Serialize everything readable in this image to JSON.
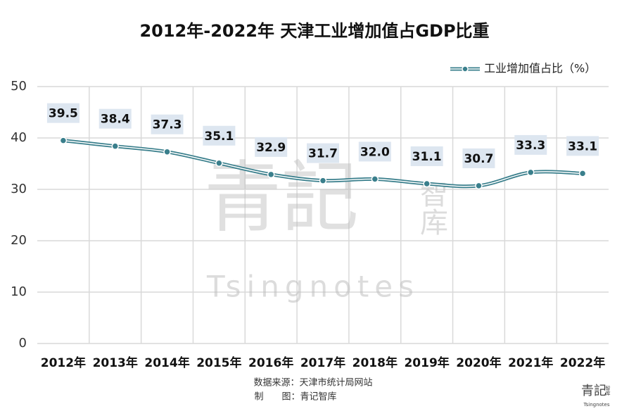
{
  "chart_data": {
    "type": "line",
    "title": "2012年-2022年 天津工业增加值占GDP比重",
    "categories": [
      "2012年",
      "2013年",
      "2014年",
      "2015年",
      "2016年",
      "2017年",
      "2018年",
      "2019年",
      "2020年",
      "2021年",
      "2022年"
    ],
    "series": [
      {
        "name": "工业增加值占比（%）",
        "color": "#3a7f8c",
        "values": [
          39.5,
          38.4,
          37.3,
          35.1,
          32.9,
          31.7,
          32.0,
          31.1,
          30.7,
          33.3,
          33.1
        ],
        "value_labels": [
          "39.5",
          "38.4",
          "37.3",
          "35.1",
          "32.9",
          "31.7",
          "32.0",
          "31.1",
          "30.7",
          "33.3",
          "33.1"
        ]
      }
    ],
    "ylim": [
      0,
      50
    ],
    "yticks": [
      0,
      10,
      20,
      30,
      40,
      50
    ],
    "grid": true,
    "legend": "top-right",
    "watermark": {
      "main": "青記",
      "side": "智库",
      "latin": "Tsingnotes"
    },
    "footer": [
      "数据来源：天津市统计局网站",
      "制　　图：青记智库"
    ],
    "logo": {
      "main": "青記",
      "side": "智库",
      "latin": "Tsingnotes"
    }
  }
}
